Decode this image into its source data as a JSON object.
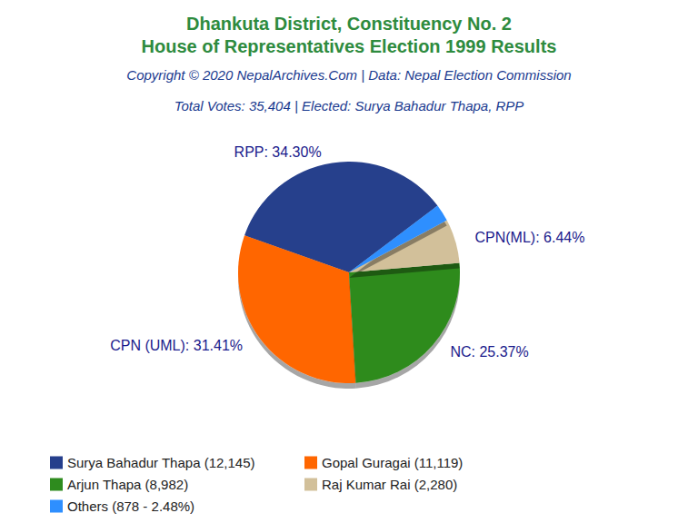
{
  "chart_data": {
    "type": "pie",
    "title": [
      "Dhankuta District, Constituency No. 2",
      "House of Representatives Election 1999 Results"
    ],
    "subtitle": "Copyright © 2020 NepalArchives.Com | Data: Nepal Election Commission",
    "annotation": "Total Votes: 35,404 | Elected: Surya Bahadur Thapa, RPP",
    "categories": [
      "Surya Bahadur Thapa (12,145)",
      "Gopal Guragai (11,119)",
      "Arjun Thapa (8,982)",
      "Raj Kumar Rai (2,280)",
      "Others (878 - 2.48%)"
    ],
    "values": [
      34.3,
      31.41,
      25.37,
      6.44,
      2.48
    ],
    "value_labels": [
      "RPP: 34.30%",
      "CPN (UML): 31.41%",
      "NC: 25.37%",
      "CPN(ML): 6.44%",
      null
    ],
    "colors": [
      "#263f8c",
      "#ff6600",
      "#2e8b1e",
      "#d2c09a",
      "#2e8fff"
    ],
    "legend": "bottom",
    "data_labels": true
  }
}
